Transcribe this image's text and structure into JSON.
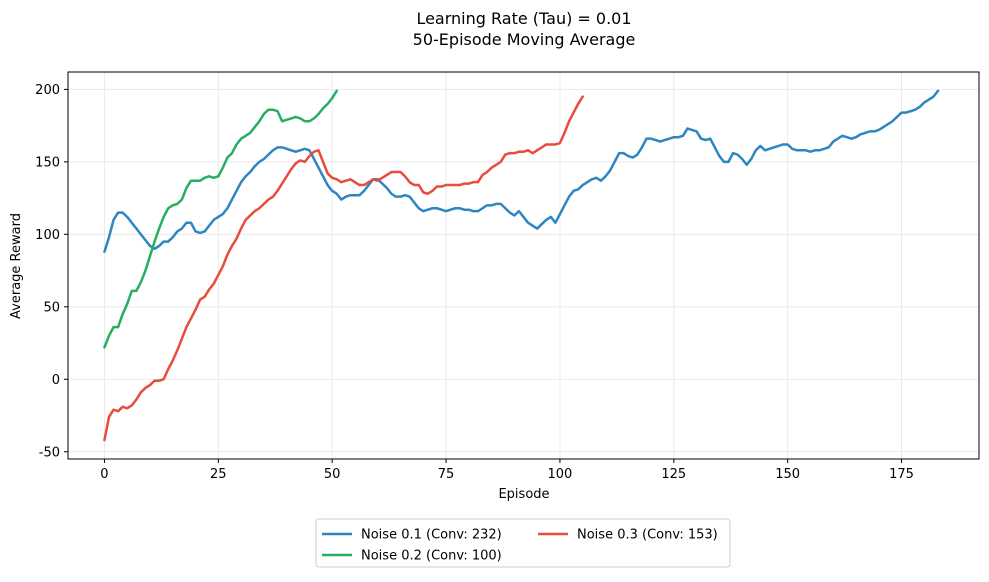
{
  "chart_data": {
    "type": "line",
    "title": "Learning Rate (Tau) = 0.01",
    "subtitle": "50-Episode Moving Average",
    "xlabel": "Episode",
    "ylabel": "Average Reward",
    "xlim": [
      -8,
      192
    ],
    "ylim": [
      -55,
      212
    ],
    "xticks": [
      0,
      25,
      50,
      75,
      100,
      125,
      150,
      175
    ],
    "yticks": [
      -50,
      0,
      50,
      100,
      150,
      200
    ],
    "grid": true,
    "legend_position": "bottom-center",
    "series": [
      {
        "name": "Noise 0.1 (Conv: 232)",
        "color": "#2e86c1",
        "x_start": 0,
        "values": [
          88,
          98,
          110,
          115,
          115,
          112,
          108,
          104,
          100,
          96,
          92,
          90,
          92,
          95,
          95,
          98,
          102,
          104,
          108,
          108,
          102,
          101,
          102,
          106,
          110,
          112,
          114,
          118,
          124,
          130,
          136,
          140,
          143,
          147,
          150,
          152,
          155,
          158,
          160,
          160,
          159,
          158,
          157,
          158,
          159,
          158,
          152,
          146,
          140,
          134,
          130,
          128,
          124,
          126,
          127,
          127,
          127,
          130,
          134,
          138,
          138,
          135,
          132,
          128,
          126,
          126,
          127,
          126,
          122,
          118,
          116,
          117,
          118,
          118,
          117,
          116,
          117,
          118,
          118,
          117,
          117,
          116,
          116,
          118,
          120,
          120,
          121,
          121,
          118,
          115,
          113,
          116,
          112,
          108,
          106,
          104,
          107,
          110,
          112,
          108,
          114,
          120,
          126,
          130,
          131,
          134,
          136,
          138,
          139,
          137,
          140,
          144,
          150,
          156,
          156,
          154,
          153,
          155,
          160,
          166,
          166,
          165,
          164,
          165,
          166,
          167,
          167,
          168,
          173,
          172,
          171,
          166,
          165,
          166,
          160,
          154,
          150,
          150,
          156,
          155,
          152,
          148,
          152,
          158,
          161,
          158,
          159,
          160,
          161,
          162,
          162,
          159,
          158,
          158,
          158,
          157,
          158,
          158,
          159,
          160,
          164,
          166,
          168,
          167,
          166,
          167,
          169,
          170,
          171,
          171,
          172,
          174,
          176,
          178,
          181,
          184,
          184,
          185,
          186,
          188,
          191,
          193,
          195,
          199
        ]
      },
      {
        "name": "Noise 0.2 (Conv: 100)",
        "color": "#27ae60",
        "x_start": 0,
        "values": [
          22,
          30,
          36,
          36,
          45,
          52,
          61,
          61,
          67,
          75,
          85,
          95,
          104,
          112,
          118,
          120,
          121,
          124,
          132,
          137,
          137,
          137,
          139,
          140,
          139,
          140,
          146,
          153,
          156,
          162,
          166,
          168,
          170,
          174,
          178,
          183,
          186,
          186,
          185,
          178,
          179,
          180,
          181,
          180,
          178,
          178,
          180,
          183,
          187,
          190,
          194,
          199
        ]
      },
      {
        "name": "Noise 0.3 (Conv: 153)",
        "color": "#e74c3c",
        "x_start": 0,
        "values": [
          -42,
          -26,
          -21,
          -22,
          -19,
          -20,
          -18,
          -14,
          -9,
          -6,
          -4,
          -1,
          -1,
          0,
          7,
          13,
          20,
          28,
          36,
          42,
          48,
          55,
          57,
          62,
          66,
          72,
          78,
          86,
          92,
          97,
          104,
          110,
          113,
          116,
          118,
          121,
          124,
          126,
          130,
          135,
          140,
          145,
          149,
          151,
          150,
          154,
          157,
          158,
          150,
          142,
          139,
          138,
          136,
          137,
          138,
          136,
          134,
          134,
          136,
          138,
          137,
          139,
          141,
          143,
          143,
          143,
          140,
          136,
          134,
          134,
          129,
          128,
          130,
          133,
          133,
          134,
          134,
          134,
          134,
          135,
          135,
          136,
          136,
          141,
          143,
          146,
          148,
          150,
          155,
          156,
          156,
          157,
          157,
          158,
          156,
          158,
          160,
          162,
          162,
          162,
          163,
          170,
          178,
          184,
          190,
          195
        ]
      }
    ]
  }
}
